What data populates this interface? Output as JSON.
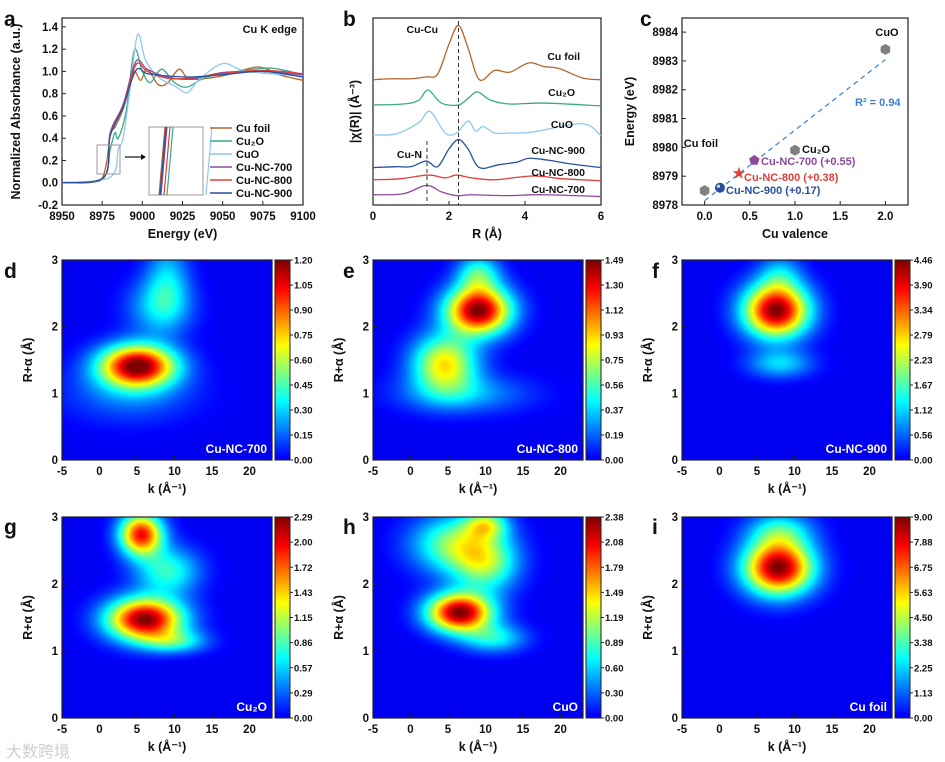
{
  "chart_data": [
    {
      "id": "a",
      "panel_letter": "a",
      "type": "line",
      "title": "Cu K edge",
      "xlabel": "Energy (eV)",
      "ylabel": "Normalized Absorbance (a.u.)",
      "xlim": [
        8950,
        9100
      ],
      "ylim": [
        -0.2,
        1.48
      ],
      "xticks": [
        8950,
        8975,
        9000,
        9025,
        9050,
        9075,
        9100
      ],
      "yticks": [
        "-0.2",
        "0.0",
        "0.2",
        "0.4",
        "0.6",
        "0.8",
        "1.0",
        "1.2",
        "1.4"
      ],
      "legend_position": "lower-right",
      "inset": "zoom of edge region (8977-8986 eV)",
      "series": [
        {
          "name": "Cu foil",
          "color": "#b5652a",
          "x": [
            8950,
            8970,
            8975,
            8978,
            8980,
            8983,
            8988,
            8992,
            8995,
            8999,
            9003,
            9010,
            9016,
            9023,
            9030,
            9050,
            9072,
            9085,
            9100
          ],
          "y": [
            0,
            0.01,
            0.04,
            0.2,
            0.44,
            0.5,
            0.66,
            0.86,
            1.0,
            0.92,
            1.02,
            0.88,
            0.9,
            1.02,
            0.93,
            0.96,
            1.04,
            0.97,
            0.92
          ]
        },
        {
          "name": "Cu₂O",
          "color": "#3aaa8a",
          "x": [
            8950,
            8975,
            8980,
            8983,
            8985,
            8990,
            8995,
            9000,
            9005,
            9012,
            9020,
            9028,
            9040,
            9060,
            9080,
            9100
          ],
          "y": [
            0,
            0.03,
            0.3,
            0.45,
            0.4,
            0.65,
            1.19,
            1.0,
            0.9,
            1.02,
            0.9,
            0.86,
            0.95,
            1.0,
            1.03,
            0.97
          ]
        },
        {
          "name": "CuO",
          "color": "#8ec9ee",
          "x": [
            8950,
            8980,
            8985,
            8988,
            8992,
            8997,
            9002,
            9010,
            9020,
            9028,
            9035,
            9050,
            9065,
            9100
          ],
          "y": [
            0,
            0.05,
            0.3,
            0.4,
            0.8,
            1.33,
            1.1,
            0.95,
            0.87,
            0.81,
            0.92,
            1.07,
            1.0,
            0.96
          ]
        },
        {
          "name": "Cu-NC-700",
          "color": "#8b4a9c",
          "x": [
            8950,
            8976,
            8980,
            8988,
            8996,
            9003,
            9015,
            9030,
            9050,
            9075,
            9100
          ],
          "y": [
            0,
            0.05,
            0.45,
            0.7,
            1.09,
            1.02,
            0.95,
            0.93,
            0.99,
            1.0,
            0.97
          ]
        },
        {
          "name": "Cu-NC-800",
          "color": "#e0403a",
          "x": [
            8950,
            8976,
            8980,
            8988,
            8996,
            9003,
            9015,
            9030,
            9050,
            9075,
            9100
          ],
          "y": [
            0,
            0.05,
            0.43,
            0.68,
            1.06,
            1.0,
            0.94,
            0.94,
            0.98,
            1.01,
            0.98
          ]
        },
        {
          "name": "Cu-NC-900",
          "color": "#2850a0",
          "x": [
            8950,
            8976,
            8980,
            8988,
            8996,
            9003,
            9015,
            9030,
            9050,
            9075,
            9100
          ],
          "y": [
            0,
            0.05,
            0.42,
            0.68,
            1.01,
            0.98,
            0.96,
            0.95,
            0.97,
            1.0,
            0.95
          ]
        }
      ]
    },
    {
      "id": "b",
      "panel_letter": "b",
      "type": "line",
      "xlabel": "R (Å)",
      "ylabel": "|χ(R)| (Å⁻³)",
      "xlim": [
        0,
        6
      ],
      "ylim": [
        0,
        10
      ],
      "xticks": [
        0,
        2,
        4,
        6
      ],
      "annotations": [
        "Cu-Cu",
        "Cu-N"
      ],
      "reference_lines": [
        2.25,
        1.42
      ],
      "series": [
        {
          "name": "Cu foil",
          "color": "#b5652a",
          "x": [
            0,
            0.5,
            1,
            1.4,
            1.7,
            2.0,
            2.25,
            2.5,
            2.8,
            3.2,
            3.6,
            4.1,
            4.5,
            4.9,
            5.5,
            6
          ],
          "y": [
            6.7,
            6.75,
            6.75,
            6.85,
            7.0,
            8.6,
            9.6,
            8.4,
            6.7,
            7.2,
            7.1,
            7.6,
            7.4,
            7.3,
            6.8,
            6.7
          ]
        },
        {
          "name": "Cu₂O",
          "color": "#3aaa8a",
          "x": [
            0,
            0.8,
            1.2,
            1.45,
            1.8,
            2.25,
            2.5,
            2.75,
            3.1,
            3.6,
            4.5,
            6
          ],
          "y": [
            5.35,
            5.4,
            5.6,
            6.15,
            5.45,
            5.35,
            5.7,
            6.05,
            5.6,
            5.4,
            5.45,
            5.3
          ]
        },
        {
          "name": "CuO",
          "color": "#8ec9ee",
          "x": [
            0,
            0.6,
            1.2,
            1.5,
            1.9,
            2.2,
            2.5,
            2.7,
            2.9,
            3.2,
            3.6,
            4.2,
            5.5,
            6
          ],
          "y": [
            3.75,
            3.8,
            4.4,
            5.0,
            3.85,
            3.85,
            4.5,
            3.95,
            4.2,
            3.85,
            3.85,
            3.9,
            4.35,
            3.7
          ]
        },
        {
          "name": "Cu-NC-900",
          "color": "#2850a0",
          "x": [
            0,
            0.6,
            1.0,
            1.4,
            1.7,
            2.0,
            2.25,
            2.5,
            2.8,
            3.3,
            3.8,
            4.1,
            4.6,
            5.2,
            6
          ],
          "y": [
            2.0,
            2.05,
            2.05,
            2.35,
            2.05,
            3.0,
            3.5,
            3.0,
            2.0,
            2.15,
            2.3,
            2.5,
            2.4,
            2.2,
            2.0
          ]
        },
        {
          "name": "Cu-NC-800",
          "color": "#e0403a",
          "x": [
            0,
            0.7,
            1.45,
            1.9,
            2.2,
            2.6,
            3.2,
            4.2,
            5,
            6
          ],
          "y": [
            1.35,
            1.4,
            1.6,
            1.45,
            1.6,
            1.45,
            1.35,
            1.55,
            1.4,
            1.3
          ]
        },
        {
          "name": "Cu-NC-700",
          "color": "#8b4a9c",
          "x": [
            0,
            0.8,
            1.4,
            1.8,
            2.2,
            2.6,
            3.5,
            4.5,
            6
          ],
          "y": [
            0.55,
            0.6,
            1.05,
            0.7,
            0.5,
            0.55,
            0.5,
            0.55,
            0.45
          ]
        }
      ]
    },
    {
      "id": "c",
      "panel_letter": "c",
      "type": "scatter",
      "xlabel": "Cu valence",
      "ylabel": "Energy (eV)",
      "xlim": [
        -0.25,
        2.25
      ],
      "ylim": [
        8978,
        8984.49
      ],
      "xticks": [
        "0.0",
        "0.5",
        "1.0",
        "1.5",
        "2.0"
      ],
      "yticks": [
        "8978",
        "8979",
        "8980",
        "8981",
        "8982",
        "8983",
        "8984"
      ],
      "fit": {
        "label": "R² = 0.94",
        "color": "#3a7fd5",
        "x": [
          0,
          2
        ],
        "y": [
          8978.15,
          8983.05
        ]
      },
      "points": [
        {
          "name": "Cu foil",
          "label": "Cu foil",
          "x": 0,
          "y": 8978.5,
          "color": "#808080",
          "marker": "hexagon"
        },
        {
          "name": "Cu₂O",
          "label": "Cu₂O",
          "x": 1,
          "y": 8979.9,
          "color": "#808080",
          "marker": "hexagon"
        },
        {
          "name": "CuO",
          "label": "CuO",
          "x": 2,
          "y": 8983.4,
          "color": "#808080",
          "marker": "hexagon"
        },
        {
          "name": "Cu-NC-700",
          "label": "Cu-NC-700 (+0.55)",
          "x": 0.55,
          "y": 8979.55,
          "color": "#8b4a9c",
          "marker": "pentagon"
        },
        {
          "name": "Cu-NC-800",
          "label": "Cu-NC-800 (+0.38)",
          "x": 0.38,
          "y": 8979.1,
          "color": "#e0403a",
          "marker": "star"
        },
        {
          "name": "Cu-NC-900",
          "label": "Cu-NC-900 (+0.17)",
          "x": 0.17,
          "y": 8978.6,
          "color": "#2850a0",
          "marker": "sphere"
        }
      ]
    },
    {
      "id": "d",
      "panel_letter": "d",
      "type": "heatmap",
      "sample": "Cu-NC-700",
      "xlabel": "k (Å⁻¹)",
      "ylabel": "R+α (Å)",
      "xlim": [
        -5,
        23
      ],
      "ylim": [
        0,
        3
      ],
      "xticks": [
        -5,
        0,
        5,
        10,
        15,
        20
      ],
      "yticks": [
        0,
        1,
        2,
        3
      ],
      "colorbar": [
        "0.00",
        "0.15",
        "0.30",
        "0.45",
        "0.60",
        "0.75",
        "0.90",
        "1.05",
        "1.20"
      ],
      "peaks": [
        {
          "k": 5,
          "R": 1.42,
          "amp": 1,
          "sk": 3.5,
          "sR": 0.22
        },
        {
          "k": 8,
          "R": 2.3,
          "amp": 0.25,
          "sk": 3,
          "sR": 0.3
        },
        {
          "k": 9,
          "R": 2.75,
          "amp": 0.22,
          "sk": 2,
          "sR": 0.4
        },
        {
          "k": 4,
          "R": 1.0,
          "amp": 0.15,
          "sk": 6,
          "sR": 0.3
        }
      ]
    },
    {
      "id": "e",
      "panel_letter": "e",
      "type": "heatmap",
      "sample": "Cu-NC-800",
      "xlabel": "k (Å⁻¹)",
      "ylabel": "R+α (Å)",
      "xlim": [
        -5,
        23
      ],
      "ylim": [
        0,
        3
      ],
      "xticks": [
        -5,
        0,
        5,
        10,
        15,
        20
      ],
      "yticks": [
        0,
        1,
        2,
        3
      ],
      "colorbar": [
        "0.00",
        "0.19",
        "0.37",
        "0.56",
        "0.75",
        "0.93",
        "1.12",
        "1.30",
        "1.49"
      ],
      "peaks": [
        {
          "k": 9,
          "R": 2.25,
          "amp": 1,
          "sk": 3,
          "sR": 0.25
        },
        {
          "k": 4.5,
          "R": 1.45,
          "amp": 0.6,
          "sk": 3,
          "sR": 0.3
        },
        {
          "k": 9,
          "R": 2.8,
          "amp": 0.35,
          "sk": 2,
          "sR": 0.2
        },
        {
          "k": 7,
          "R": 1.0,
          "amp": 0.2,
          "sk": 6,
          "sR": 0.2
        }
      ]
    },
    {
      "id": "f",
      "panel_letter": "f",
      "type": "heatmap",
      "sample": "Cu-NC-900",
      "xlabel": "k (Å⁻¹)",
      "ylabel": "R+α (Å)",
      "xlim": [
        -5,
        23
      ],
      "ylim": [
        0,
        3
      ],
      "xticks": [
        -5,
        0,
        5,
        10,
        15,
        20
      ],
      "yticks": [
        0,
        1,
        2,
        3
      ],
      "colorbar": [
        "0.00",
        "0.56",
        "1.12",
        "1.67",
        "2.23",
        "2.79",
        "3.34",
        "3.90",
        "4.46"
      ],
      "peaks": [
        {
          "k": 7.5,
          "R": 2.25,
          "amp": 1,
          "sk": 3,
          "sR": 0.28
        },
        {
          "k": 8,
          "R": 1.45,
          "amp": 0.25,
          "sk": 3,
          "sR": 0.15
        },
        {
          "k": 8,
          "R": 2.8,
          "amp": 0.2,
          "sk": 2,
          "sR": 0.2
        }
      ]
    },
    {
      "id": "g",
      "panel_letter": "g",
      "type": "heatmap",
      "sample": "Cu₂O",
      "xlabel": "k (Å⁻¹)",
      "ylabel": "R+α (Å)",
      "xlim": [
        -5,
        23
      ],
      "ylim": [
        0,
        3
      ],
      "xticks": [
        -5,
        0,
        5,
        10,
        15,
        20
      ],
      "yticks": [
        0,
        1,
        2,
        3
      ],
      "colorbar": [
        "0.00",
        "0.29",
        "0.57",
        "0.86",
        "1.15",
        "1.43",
        "1.72",
        "2.00",
        "2.29"
      ],
      "peaks": [
        {
          "k": 6,
          "R": 1.48,
          "amp": 1,
          "sk": 3.5,
          "sR": 0.22
        },
        {
          "k": 5.5,
          "R": 2.75,
          "amp": 0.85,
          "sk": 2,
          "sR": 0.22
        },
        {
          "k": 9,
          "R": 2.2,
          "amp": 0.35,
          "sk": 3,
          "sR": 0.25
        },
        {
          "k": 10,
          "R": 1.15,
          "amp": 0.3,
          "sk": 3,
          "sR": 0.12
        }
      ]
    },
    {
      "id": "h",
      "panel_letter": "h",
      "type": "heatmap",
      "sample": "CuO",
      "xlabel": "k (Å⁻¹)",
      "ylabel": "R+α (Å)",
      "xlim": [
        -5,
        23
      ],
      "ylim": [
        0,
        3
      ],
      "xticks": [
        -5,
        0,
        5,
        10,
        15,
        20
      ],
      "yticks": [
        0,
        1,
        2,
        3
      ],
      "colorbar": [
        "0.00",
        "0.30",
        "0.60",
        "0.89",
        "1.19",
        "1.49",
        "1.79",
        "2.08",
        "2.38"
      ],
      "peaks": [
        {
          "k": 6.5,
          "R": 1.58,
          "amp": 1,
          "sk": 3,
          "sR": 0.2
        },
        {
          "k": 6,
          "R": 2.6,
          "amp": 0.45,
          "sk": 4,
          "sR": 0.3
        },
        {
          "k": 10,
          "R": 2.3,
          "amp": 0.4,
          "sk": 3,
          "sR": 0.3
        },
        {
          "k": 11,
          "R": 1.2,
          "amp": 0.3,
          "sk": 3,
          "sR": 0.15
        },
        {
          "k": 10,
          "R": 2.9,
          "amp": 0.4,
          "sk": 2,
          "sR": 0.15
        }
      ]
    },
    {
      "id": "i",
      "panel_letter": "i",
      "type": "heatmap",
      "sample": "Cu foil",
      "xlabel": "k (Å⁻¹)",
      "ylabel": "R+α (Å)",
      "xlim": [
        -5,
        23
      ],
      "ylim": [
        0,
        3
      ],
      "xticks": [
        -5,
        0,
        5,
        10,
        15,
        20
      ],
      "yticks": [
        0,
        1,
        2,
        3
      ],
      "colorbar": [
        "0.00",
        "1.13",
        "2.25",
        "3.38",
        "4.50",
        "5.63",
        "6.75",
        "7.88",
        "9.00"
      ],
      "peaks": [
        {
          "k": 7.8,
          "R": 2.25,
          "amp": 1,
          "sk": 3.2,
          "sR": 0.28
        },
        {
          "k": 8,
          "R": 2.8,
          "amp": 0.3,
          "sk": 3,
          "sR": 0.2
        }
      ]
    }
  ],
  "watermark": "大数跨境"
}
